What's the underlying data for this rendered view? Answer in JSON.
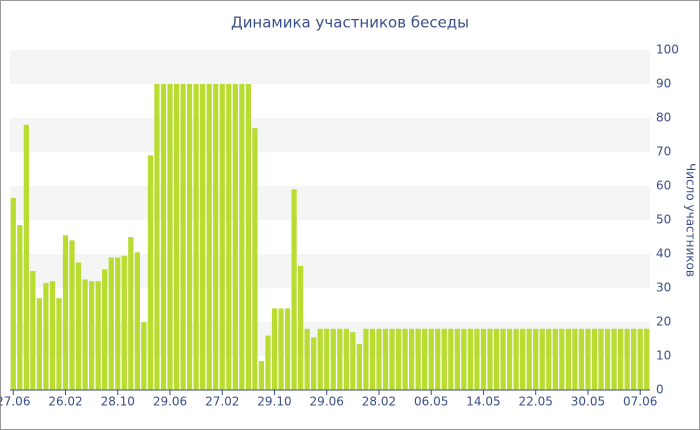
{
  "chart_data": {
    "type": "bar",
    "title": "Динамика участников беседы",
    "y_label": "Число участников",
    "categories": [
      "27.06",
      null,
      null,
      null,
      null,
      null,
      null,
      null,
      "26.02",
      null,
      null,
      null,
      null,
      null,
      null,
      null,
      "28.10",
      null,
      null,
      null,
      null,
      null,
      null,
      null,
      "29.06",
      null,
      null,
      null,
      null,
      null,
      null,
      null,
      "27.02",
      null,
      null,
      null,
      null,
      null,
      null,
      null,
      "29.10",
      null,
      null,
      null,
      null,
      null,
      null,
      null,
      "29.06",
      null,
      null,
      null,
      null,
      null,
      null,
      null,
      "28.02",
      null,
      null,
      null,
      null,
      null,
      null,
      null,
      "06.05",
      null,
      null,
      null,
      null,
      null,
      null,
      null,
      "14.05",
      null,
      null,
      null,
      null,
      null,
      null,
      null,
      "22.05",
      null,
      null,
      null,
      null,
      null,
      null,
      null,
      "30.05",
      null,
      null,
      null,
      null,
      null,
      null,
      null,
      "07.06",
      null
    ],
    "values": [
      56.5,
      48.5,
      78,
      35,
      27,
      31.5,
      32,
      27,
      45.5,
      44,
      37.5,
      32.5,
      32,
      32,
      35.5,
      39,
      39,
      39.5,
      45,
      40.5,
      20,
      69,
      90,
      90,
      90,
      90,
      90,
      90,
      90,
      90,
      90,
      90,
      90,
      90,
      90,
      90,
      90,
      77,
      8.5,
      16,
      24,
      24,
      24,
      59,
      36.5,
      18,
      15.5,
      18,
      18,
      18,
      18,
      18,
      17,
      13.5,
      18,
      18,
      18,
      18,
      18,
      18,
      18,
      18,
      18,
      18,
      18,
      18,
      18,
      18,
      18,
      18,
      18,
      18,
      18,
      18,
      18,
      18,
      18,
      18,
      18,
      18,
      18,
      18,
      18,
      18,
      18,
      18,
      18,
      18,
      18,
      18,
      18,
      18,
      18,
      18,
      18,
      18,
      18,
      18
    ],
    "color": "#b8dc30",
    "ylim": [
      0,
      100
    ],
    "yticks": [
      0,
      10,
      20,
      30,
      40,
      50,
      60,
      70,
      80,
      90,
      100
    ],
    "grid": true,
    "y_axis_side": "right"
  }
}
